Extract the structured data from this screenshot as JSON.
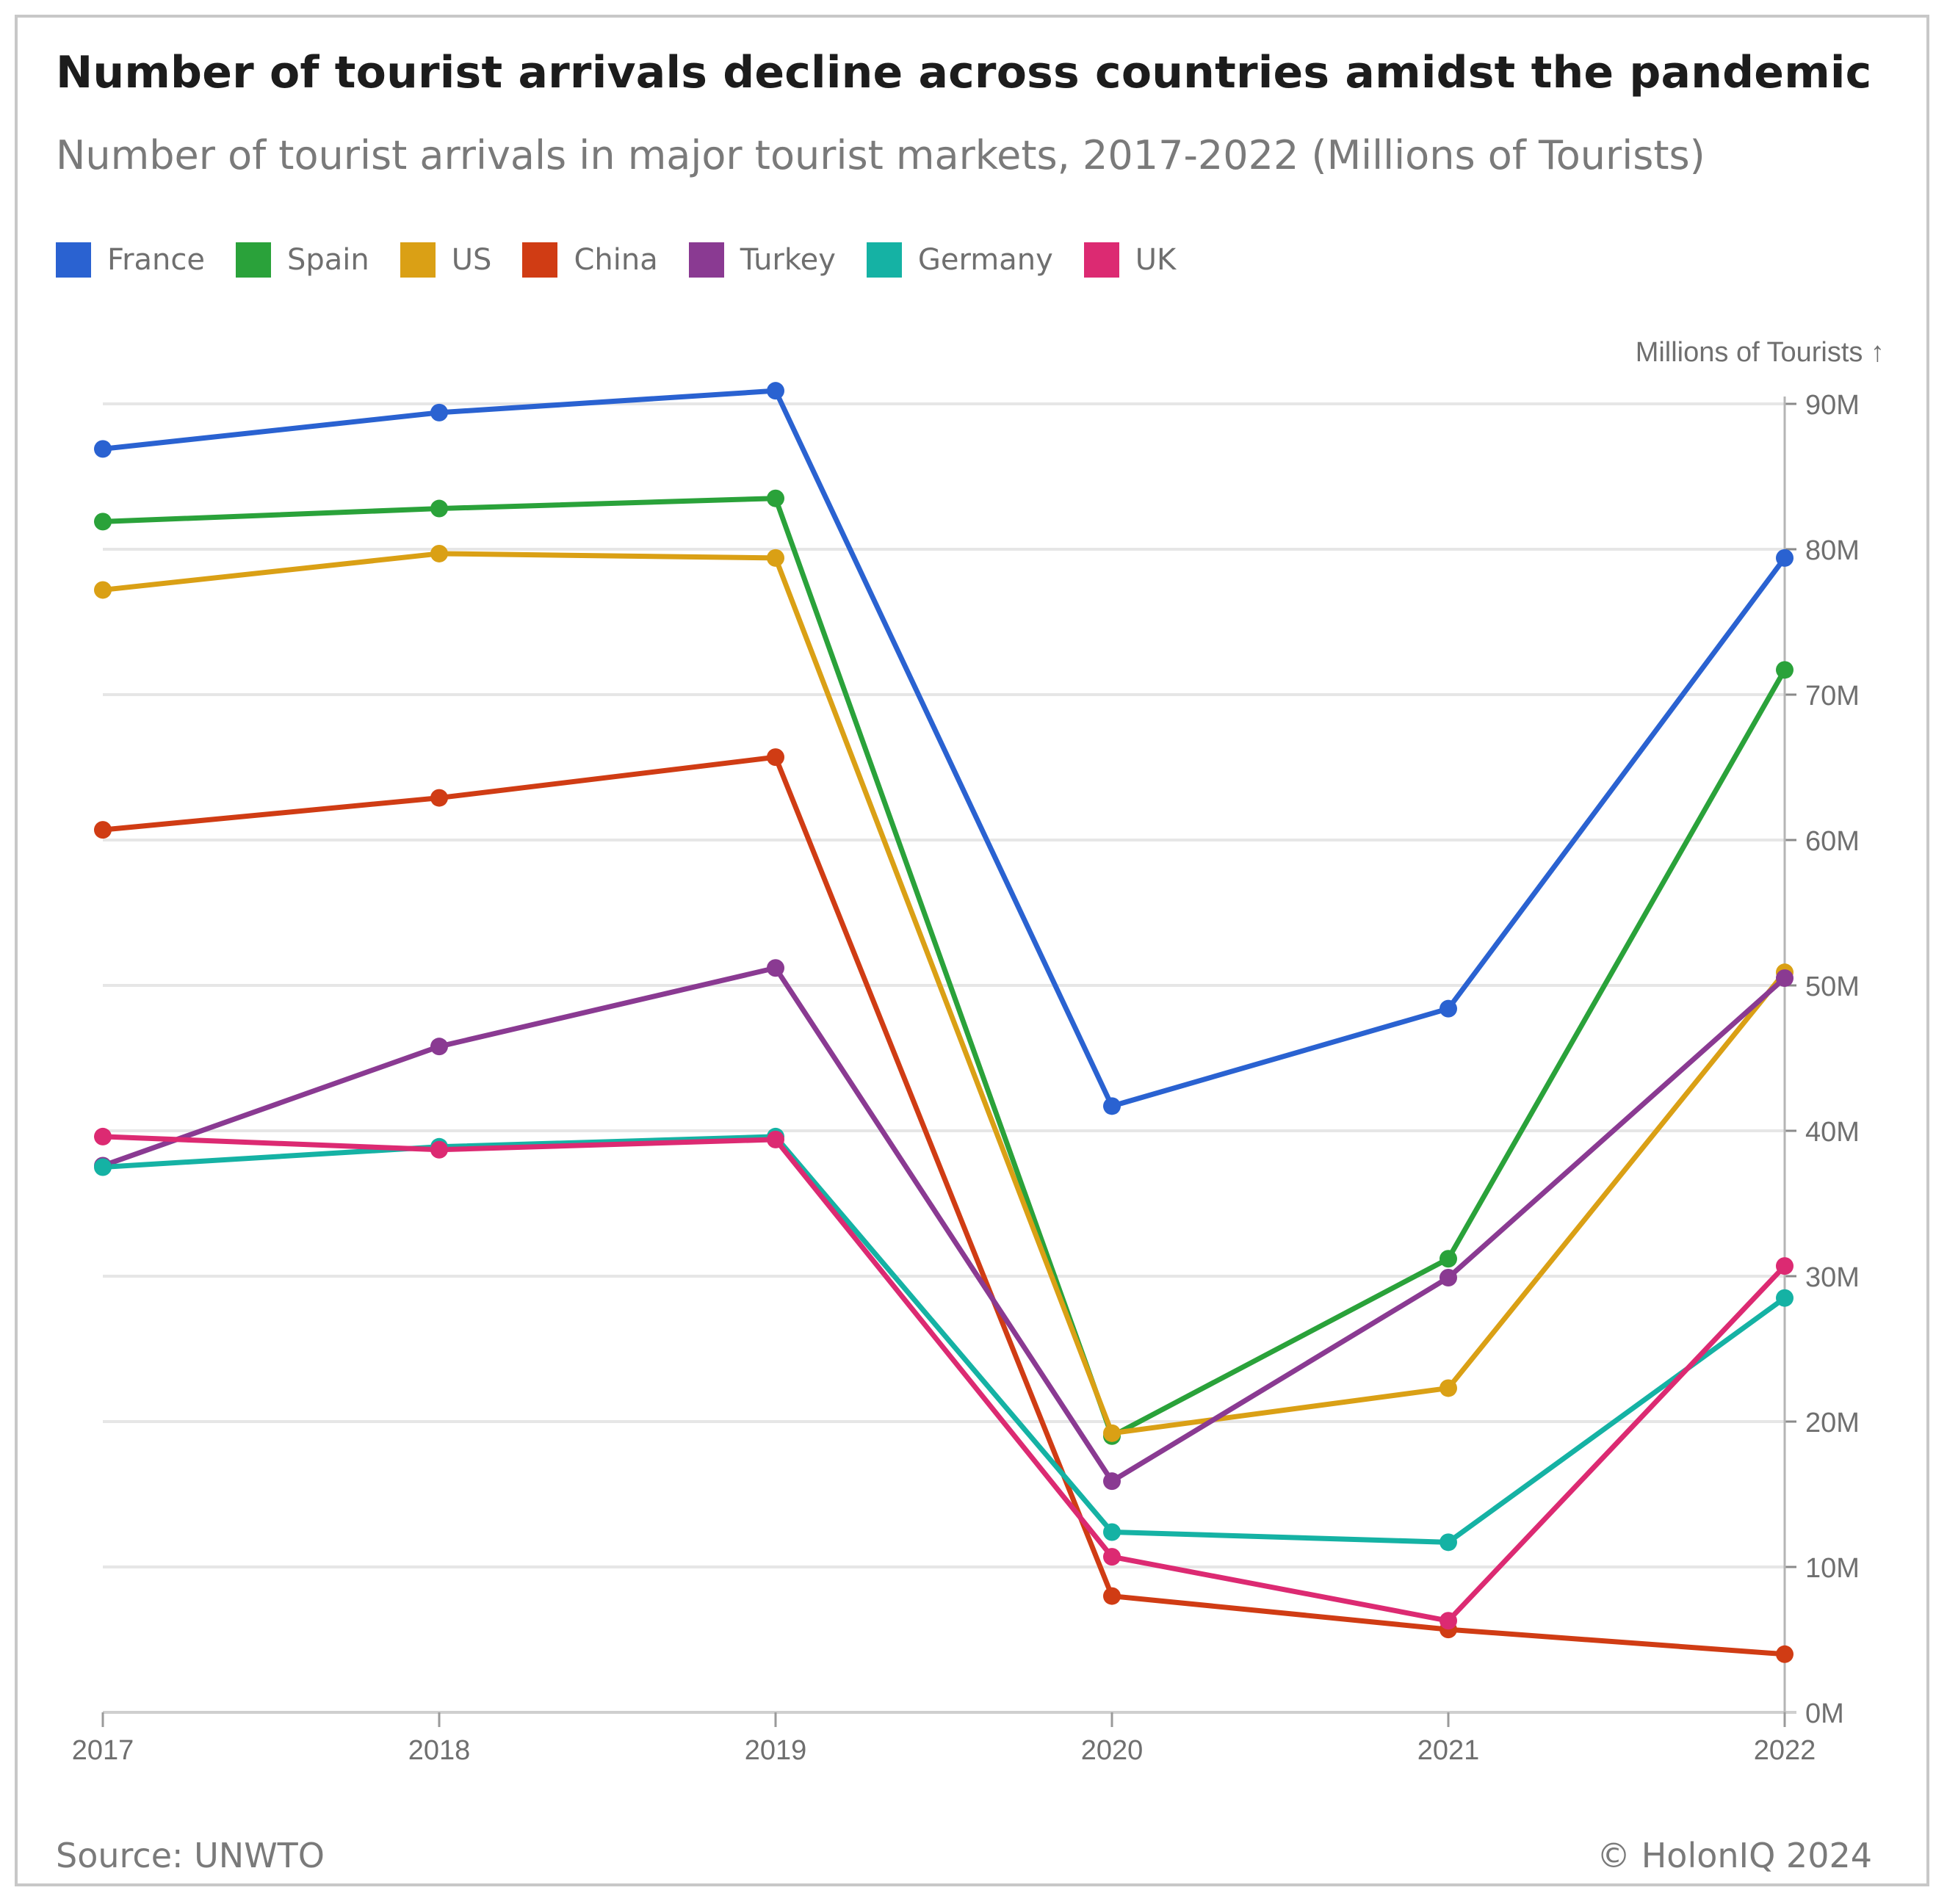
{
  "header": {
    "title": "Number of tourist arrivals decline across countries amidst the pandemic",
    "subtitle": "Number of tourist arrivals in major tourist markets, 2017-2022 (Millions of Tourists)"
  },
  "footer": {
    "source": "Source: UNWTO",
    "copyright": "© HolonIQ 2024"
  },
  "chart_data": {
    "type": "line",
    "title": "Number of tourist arrivals decline across countries amidst the pandemic",
    "subtitle": "Number of tourist arrivals in major tourist markets, 2017-2022 (Millions of Tourists)",
    "xlabel": "",
    "ylabel": "Millions of Tourists ↑",
    "categories": [
      "2017",
      "2018",
      "2019",
      "2020",
      "2021",
      "2022"
    ],
    "ylim": [
      0,
      90
    ],
    "yticks": [
      0,
      10,
      20,
      30,
      40,
      50,
      60,
      70,
      80,
      90
    ],
    "ytick_labels": [
      "0M",
      "10M",
      "20M",
      "30M",
      "40M",
      "50M",
      "60M",
      "70M",
      "80M",
      "90M"
    ],
    "y_axis_position": "right",
    "grid": true,
    "legend_position": "top-left",
    "series": [
      {
        "name": "France",
        "color": "#2a62d1",
        "values": [
          86.9,
          89.4,
          90.9,
          41.7,
          48.4,
          79.4
        ]
      },
      {
        "name": "Spain",
        "color": "#2aa23a",
        "values": [
          81.9,
          82.8,
          83.5,
          19.0,
          31.2,
          71.7
        ]
      },
      {
        "name": "US",
        "color": "#daa015",
        "values": [
          77.2,
          79.7,
          79.4,
          19.2,
          22.3,
          50.9
        ]
      },
      {
        "name": "China",
        "color": "#d03c14",
        "values": [
          60.7,
          62.9,
          65.7,
          8.0,
          5.7,
          4.0
        ]
      },
      {
        "name": "Turkey",
        "color": "#8a3a92",
        "values": [
          37.6,
          45.8,
          51.2,
          15.9,
          29.9,
          50.5
        ]
      },
      {
        "name": "Germany",
        "color": "#15b2a4",
        "values": [
          37.5,
          38.9,
          39.6,
          12.4,
          11.7,
          28.5
        ]
      },
      {
        "name": "UK",
        "color": "#dc2a72",
        "values": [
          39.6,
          38.7,
          39.4,
          10.7,
          6.3,
          30.7
        ]
      }
    ]
  }
}
